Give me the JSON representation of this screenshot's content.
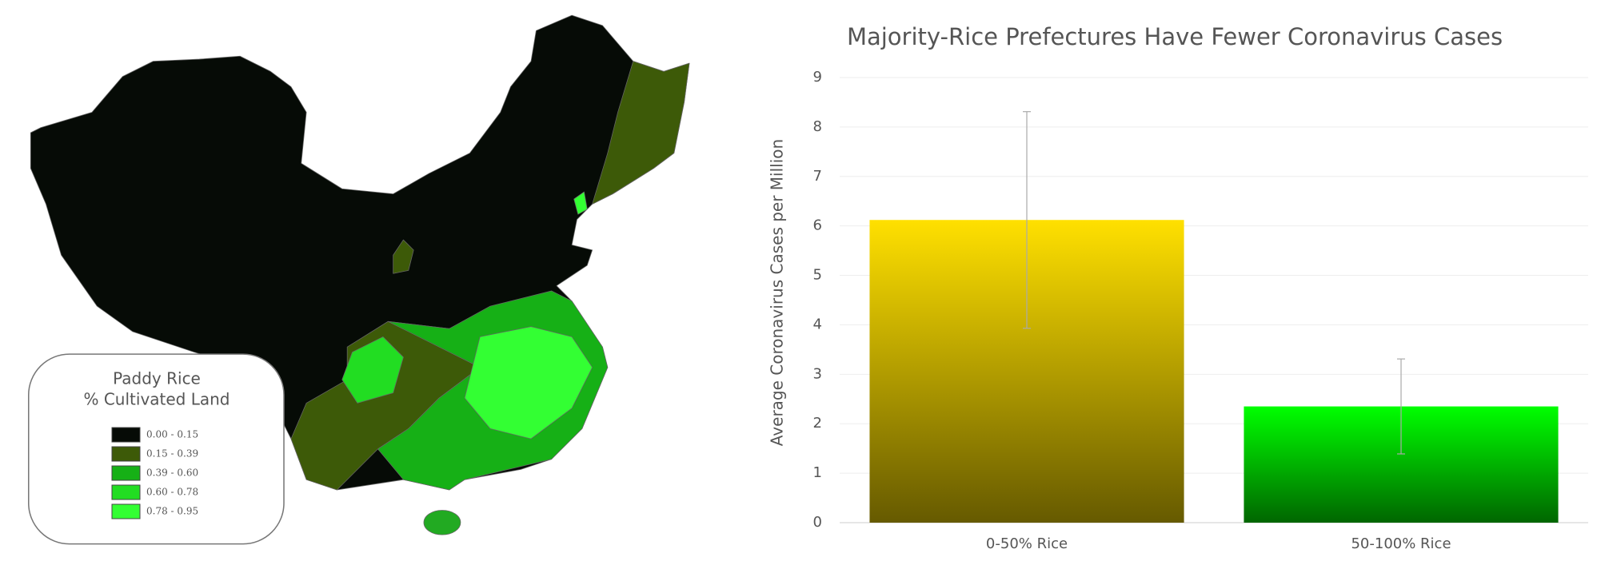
{
  "map": {
    "legend_title": [
      "Paddy Rice",
      "% Cultivated Land"
    ],
    "legend": [
      {
        "label": "0.00 - 0.15",
        "color": "#060b06"
      },
      {
        "label": "0.15 - 0.39",
        "color": "#3d5a08"
      },
      {
        "label": "0.39 - 0.60",
        "color": "#16b016"
      },
      {
        "label": "0.60 - 0.78",
        "color": "#22dd22"
      },
      {
        "label": "0.78 - 0.95",
        "color": "#33ff33"
      }
    ]
  },
  "chart_data": {
    "type": "bar",
    "title": "Majority-Rice Prefectures Have Fewer Coronavirus Cases",
    "y_label": "Average Coronavirus Cases per Million",
    "categories": [
      "0-50% Rice",
      "50-100% Rice"
    ],
    "values": [
      6.12,
      2.35
    ],
    "errors": [
      2.19,
      0.96
    ],
    "colors": [
      "#ffe000",
      "#00ff00"
    ],
    "ylim": [
      0,
      9
    ],
    "yticks": [
      0,
      1,
      2,
      3,
      4,
      5,
      6,
      7,
      8,
      9
    ],
    "grid": true
  }
}
